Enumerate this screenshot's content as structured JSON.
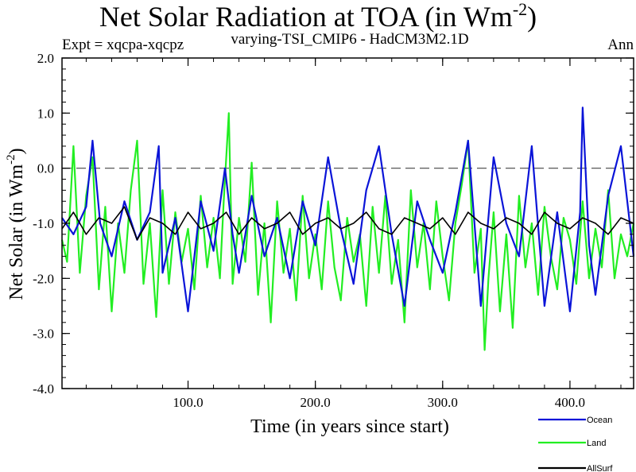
{
  "chart_data": {
    "type": "line",
    "title": "Net Solar Radiation at TOA (in Wm",
    "title_superscript": "-2",
    "title_close": ")",
    "subtitle_left": "Expt = xqcpa-xqcpz",
    "subtitle_center": "varying-TSI_CMIP6 - HadCM3M2.1D",
    "subtitle_right": "Ann",
    "xlabel": "Time (in years since start)",
    "ylabel": "Net Solar (in Wm",
    "ylabel_superscript": "-2",
    "ylabel_close": ")",
    "xlim": [
      1,
      450
    ],
    "ylim": [
      -4.0,
      2.0
    ],
    "x_ticks": [
      100.0,
      200.0,
      300.0,
      400.0
    ],
    "x_tick_labels": [
      "100.0",
      "200.0",
      "300.0",
      "400.0"
    ],
    "y_ticks": [
      2.0,
      1.0,
      0.0,
      -1.0,
      -2.0,
      -3.0,
      -4.0
    ],
    "y_tick_labels": [
      "2.0",
      "1.0",
      "0.0",
      "-1.0",
      "-2.0",
      "-3.0",
      "-4.0"
    ],
    "reference_line": 0.0,
    "series": [
      {
        "name": "Ocean",
        "color": "#0a14d8",
        "x": [
          1,
          10,
          20,
          25,
          31,
          40,
          50,
          60,
          70,
          77,
          80,
          90,
          100,
          110,
          120,
          129,
          135,
          140,
          150,
          160,
          170,
          180,
          190,
          200,
          210,
          220,
          230,
          240,
          250,
          260,
          270,
          280,
          290,
          300,
          310,
          320,
          330,
          340,
          350,
          360,
          370,
          380,
          390,
          400,
          408,
          410,
          415,
          420,
          430,
          440,
          450
        ],
        "y": [
          -0.9,
          -1.2,
          -0.7,
          0.5,
          -1.0,
          -1.6,
          -0.6,
          -1.3,
          -0.8,
          0.4,
          -1.9,
          -0.9,
          -2.6,
          -0.6,
          -1.5,
          0.0,
          -1.2,
          -1.9,
          -0.5,
          -1.6,
          -0.9,
          -2.0,
          -0.6,
          -1.4,
          0.2,
          -1.1,
          -2.1,
          -0.4,
          0.4,
          -1.2,
          -2.5,
          -0.6,
          -1.3,
          -1.9,
          -0.8,
          0.5,
          -2.5,
          0.2,
          -1.0,
          -1.6,
          0.4,
          -2.5,
          -0.8,
          -2.6,
          -0.8,
          1.1,
          -1.4,
          -2.3,
          -0.5,
          0.4,
          -1.6
        ]
      },
      {
        "name": "Land",
        "color": "#22ee22",
        "x": [
          1,
          5,
          10,
          15,
          20,
          25,
          30,
          35,
          40,
          45,
          50,
          55,
          60,
          65,
          70,
          75,
          80,
          85,
          90,
          95,
          100,
          105,
          110,
          115,
          120,
          125,
          128,
          132,
          135,
          140,
          145,
          150,
          155,
          160,
          165,
          170,
          175,
          180,
          185,
          190,
          195,
          200,
          205,
          210,
          215,
          220,
          225,
          230,
          235,
          240,
          245,
          250,
          255,
          260,
          265,
          270,
          275,
          280,
          285,
          290,
          295,
          300,
          305,
          310,
          315,
          320,
          325,
          330,
          333,
          336,
          340,
          345,
          350,
          355,
          360,
          365,
          370,
          375,
          380,
          385,
          390,
          395,
          400,
          405,
          410,
          415,
          420,
          425,
          430,
          435,
          440,
          445,
          450
        ],
        "y": [
          -1.3,
          -1.7,
          0.4,
          -1.9,
          -0.5,
          0.2,
          -2.2,
          -0.7,
          -2.6,
          -1.0,
          -1.9,
          -0.4,
          0.5,
          -2.1,
          -1.0,
          -2.7,
          -0.4,
          -2.1,
          -0.8,
          -1.7,
          -1.1,
          -2.2,
          -0.5,
          -1.8,
          -0.9,
          -2.0,
          -0.6,
          1.0,
          -2.1,
          -0.9,
          -1.7,
          0.1,
          -2.3,
          -1.0,
          -2.8,
          -0.6,
          -1.9,
          -1.1,
          -2.4,
          -0.5,
          -2.0,
          -1.2,
          -2.2,
          -0.6,
          -1.8,
          -2.4,
          -0.9,
          -1.7,
          -1.2,
          -2.5,
          -0.7,
          -1.9,
          -0.5,
          -2.1,
          -1.3,
          -2.8,
          -0.4,
          -1.8,
          -1.0,
          -2.2,
          -0.6,
          -1.6,
          -2.4,
          -1.0,
          -0.3,
          0.5,
          -1.9,
          -1.1,
          -3.3,
          -2.0,
          -0.8,
          -2.6,
          -1.2,
          -2.9,
          -0.5,
          -1.8,
          -1.0,
          -2.3,
          -0.7,
          -1.6,
          -2.2,
          -0.9,
          -1.3,
          -2.1,
          -0.6,
          -2.0,
          -1.1,
          -1.8,
          -0.4,
          -2.0,
          -1.2,
          -1.6,
          -1.0
        ]
      },
      {
        "name": "AllSurf",
        "color": "#000000",
        "x": [
          1,
          10,
          20,
          30,
          40,
          50,
          60,
          70,
          80,
          90,
          100,
          110,
          120,
          130,
          140,
          150,
          160,
          170,
          180,
          190,
          200,
          210,
          220,
          230,
          240,
          250,
          260,
          270,
          280,
          290,
          300,
          310,
          320,
          330,
          340,
          350,
          360,
          370,
          380,
          390,
          400,
          410,
          420,
          430,
          440,
          450
        ],
        "y": [
          -1.1,
          -0.8,
          -1.2,
          -0.9,
          -1.0,
          -0.7,
          -1.3,
          -0.9,
          -1.0,
          -1.2,
          -0.8,
          -1.1,
          -1.0,
          -0.8,
          -1.2,
          -0.9,
          -1.1,
          -1.0,
          -0.8,
          -1.2,
          -1.0,
          -0.9,
          -1.1,
          -1.0,
          -0.8,
          -1.1,
          -1.2,
          -0.9,
          -1.0,
          -1.1,
          -0.9,
          -1.2,
          -0.8,
          -1.0,
          -1.1,
          -0.9,
          -1.0,
          -1.2,
          -0.8,
          -1.0,
          -1.1,
          -0.9,
          -1.0,
          -1.2,
          -0.9,
          -1.0
        ]
      }
    ],
    "legend_position": "bottom-right",
    "grid": false
  }
}
